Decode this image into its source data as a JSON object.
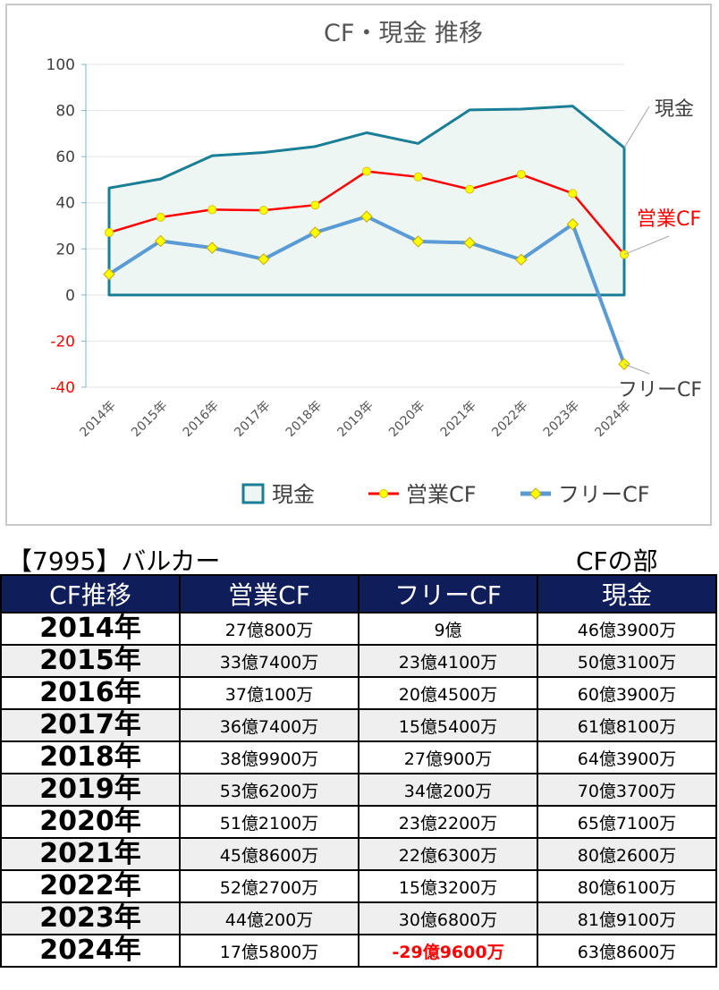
{
  "chart_data": {
    "type": "line",
    "title": "CF・現金 推移",
    "categories": [
      "2014年",
      "2015年",
      "2016年",
      "2017年",
      "2018年",
      "2019年",
      "2020年",
      "2021年",
      "2022年",
      "2023年",
      "2024年"
    ],
    "ylim": [
      -40,
      100
    ],
    "yticks": [
      100,
      80,
      60,
      40,
      20,
      0,
      -20,
      -40
    ],
    "grid": true,
    "legend_position": "bottom",
    "series": [
      {
        "name": "現金",
        "style": "area",
        "color": "#1a7f96",
        "fill": "#eef6f4",
        "values": [
          46.39,
          50.31,
          60.39,
          61.81,
          64.39,
          70.37,
          65.71,
          80.26,
          80.61,
          81.91,
          63.86
        ]
      },
      {
        "name": "営業CF",
        "style": "line",
        "color": "#ff0000",
        "marker": "#ffff00",
        "values": [
          27.08,
          33.74,
          37.01,
          36.74,
          38.99,
          53.62,
          51.21,
          45.86,
          52.27,
          44.02,
          17.58
        ]
      },
      {
        "name": "フリーCF",
        "style": "line",
        "color": "#5b9bd5",
        "marker": "#ffff00",
        "values": [
          9.0,
          23.41,
          20.45,
          15.54,
          27.09,
          34.02,
          23.22,
          22.63,
          15.32,
          30.68,
          -29.96
        ]
      }
    ],
    "annotations": [
      {
        "text": "現金",
        "series": "現金",
        "color": "#404040"
      },
      {
        "text": "営業CF",
        "series": "営業CF",
        "color": "#ff0000"
      },
      {
        "text": "フリーCF",
        "series": "フリーCF",
        "color": "#404040"
      }
    ]
  },
  "caption": {
    "left": "【7995】バルカー",
    "right": "CFの部"
  },
  "table": {
    "headers": [
      "CF推移",
      "営業CF",
      "フリーCF",
      "現金"
    ],
    "rows": [
      {
        "year": "2014年",
        "op": "27億800万",
        "free": "9億",
        "cash": "46億3900万"
      },
      {
        "year": "2015年",
        "op": "33億7400万",
        "free": "23億4100万",
        "cash": "50億3100万"
      },
      {
        "year": "2016年",
        "op": "37億100万",
        "free": "20億4500万",
        "cash": "60億3900万"
      },
      {
        "year": "2017年",
        "op": "36億7400万",
        "free": "15億5400万",
        "cash": "61億8100万"
      },
      {
        "year": "2018年",
        "op": "38億9900万",
        "free": "27億900万",
        "cash": "64億3900万"
      },
      {
        "year": "2019年",
        "op": "53億6200万",
        "free": "34億200万",
        "cash": "70億3700万"
      },
      {
        "year": "2020年",
        "op": "51億2100万",
        "free": "23億2200万",
        "cash": "65億7100万"
      },
      {
        "year": "2021年",
        "op": "45億8600万",
        "free": "22億6300万",
        "cash": "80億2600万"
      },
      {
        "year": "2022年",
        "op": "52億2700万",
        "free": "15億3200万",
        "cash": "80億6100万"
      },
      {
        "year": "2023年",
        "op": "44億200万",
        "free": "30億6800万",
        "cash": "81億9100万"
      },
      {
        "year": "2024年",
        "op": "17億5800万",
        "free": "-29億9600万",
        "cash": "63億8600万",
        "free_negative": true
      }
    ]
  }
}
